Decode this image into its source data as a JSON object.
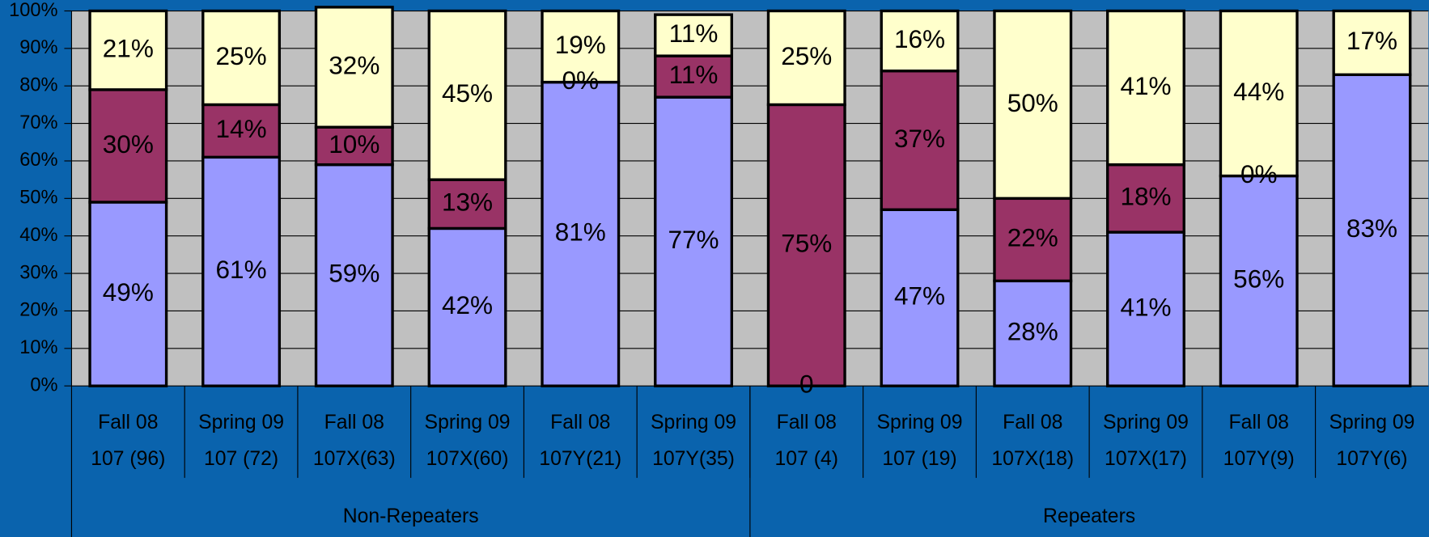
{
  "chart_data": {
    "type": "stacked_bar",
    "categories": [
      {
        "term": "Fall 08",
        "course": "107 (96)"
      },
      {
        "term": "Spring 09",
        "course": "107 (72)"
      },
      {
        "term": "Fall 08",
        "course": "107X(63)"
      },
      {
        "term": "Spring 09",
        "course": "107X(60)"
      },
      {
        "term": "Fall 08",
        "course": "107Y(21)"
      },
      {
        "term": "Spring 09",
        "course": "107Y(35)"
      },
      {
        "term": "Fall 08",
        "course": "107 (4)"
      },
      {
        "term": "Spring 09",
        "course": "107 (19)"
      },
      {
        "term": "Fall 08",
        "course": "107X(18)"
      },
      {
        "term": "Spring 09",
        "course": "107X(17)"
      },
      {
        "term": "Fall 08",
        "course": "107Y(9)"
      },
      {
        "term": "Spring 09",
        "course": "107Y(6)"
      }
    ],
    "groups": [
      {
        "label": "Non-Repeaters",
        "span": 6
      },
      {
        "label": "Repeaters",
        "span": 6
      }
    ],
    "series": [
      {
        "color": "#9999ff",
        "values": [
          49,
          61,
          59,
          42,
          81,
          77,
          0,
          47,
          28,
          41,
          56,
          83
        ],
        "value_labels": [
          "49%",
          "61%",
          "59%",
          "42%",
          "81%",
          "77%",
          "0",
          "47%",
          "28%",
          "41%",
          "56%",
          "83%"
        ]
      },
      {
        "color": "#993366",
        "values": [
          30,
          14,
          10,
          13,
          0,
          11,
          75,
          37,
          22,
          18,
          0,
          0
        ],
        "value_labels": [
          "30%",
          "14%",
          "10%",
          "13%",
          "0%",
          "11%",
          "75%",
          "37%",
          "22%",
          "18%",
          "0%",
          null
        ]
      },
      {
        "color": "#ffffcc",
        "values": [
          21,
          25,
          32,
          45,
          19,
          11,
          25,
          16,
          50,
          41,
          44,
          17
        ],
        "value_labels": [
          "21%",
          "25%",
          "32%",
          "45%",
          "19%",
          "11%",
          "25%",
          "16%",
          "50%",
          "41%",
          "44%",
          "17%"
        ]
      }
    ],
    "ylim": [
      0,
      100
    ],
    "yticks": [
      {
        "value": 0,
        "label": "0%"
      },
      {
        "value": 10,
        "label": "10%"
      },
      {
        "value": 20,
        "label": "20%"
      },
      {
        "value": 30,
        "label": "30%"
      },
      {
        "value": 40,
        "label": "40%"
      },
      {
        "value": 50,
        "label": "50%"
      },
      {
        "value": 60,
        "label": "60%"
      },
      {
        "value": 70,
        "label": "70%"
      },
      {
        "value": 80,
        "label": "80%"
      },
      {
        "value": 90,
        "label": "90%"
      },
      {
        "value": 100,
        "label": "100%"
      }
    ],
    "grid": true
  }
}
